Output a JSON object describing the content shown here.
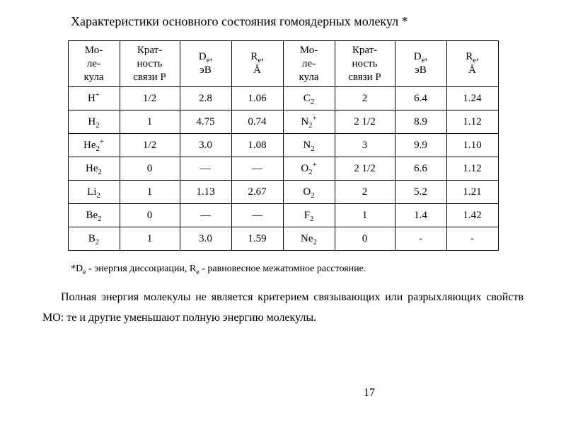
{
  "title": "Характеристики основного состояния гомоядерных молекул *",
  "table": {
    "columns_left": {
      "mol": "Мо-\nле-\nкула",
      "bond": "Крат-\nность\nсвязи Р",
      "de": "D<sub>е</sub>,\nэВ",
      "re": "R<sub>е</sub>,\nÅ"
    },
    "columns_right": {
      "mol": "Мо-\nле-\nкула",
      "bond": "Крат-\nность\nсвязи Р",
      "de": "D<sub>е</sub>,\nэВ",
      "re": "R<sub>е</sub>,\nÅ"
    },
    "rows": [
      {
        "l_mol": "H<sup>+</sup>",
        "l_bond": "1/2",
        "l_de": "2.8",
        "l_re": "1.06",
        "r_mol": "C<sub>2</sub>",
        "r_bond": "2",
        "r_de": "6.4",
        "r_re": "1.24"
      },
      {
        "l_mol": "H<sub>2</sub>",
        "l_bond": "1",
        "l_de": "4.75",
        "l_re": "0.74",
        "r_mol": "N<sub>2</sub><sup>+</sup>",
        "r_bond": "2 1/2",
        "r_de": "8.9",
        "r_re": "1.12"
      },
      {
        "l_mol": "He<sub>2</sub><sup>+</sup>",
        "l_bond": "1/2",
        "l_de": "3.0",
        "l_re": "1.08",
        "r_mol": "N<sub>2</sub>",
        "r_bond": "3",
        "r_de": "9.9",
        "r_re": "1.10"
      },
      {
        "l_mol": "He<sub>2</sub>",
        "l_bond": "0",
        "l_de": "—",
        "l_re": "—",
        "r_mol": "O<sub>2</sub><sup>+</sup>",
        "r_bond": "2 1/2",
        "r_de": "6.6",
        "r_re": "1.12"
      },
      {
        "l_mol": "Li<sub>2</sub>",
        "l_bond": "1",
        "l_de": "1.13",
        "l_re": "2.67",
        "r_mol": "O<sub>2</sub>",
        "r_bond": "2",
        "r_de": "5.2",
        "r_re": "1.21"
      },
      {
        "l_mol": "Be<sub>2</sub>",
        "l_bond": "0",
        "l_de": "—",
        "l_re": "—",
        "r_mol": "F<sub>2</sub>",
        "r_bond": "1",
        "r_de": "1.4",
        "r_re": "1.42"
      },
      {
        "l_mol": "B<sub>2</sub>",
        "l_bond": "1",
        "l_de": "3.0",
        "l_re": "1.59",
        "r_mol": "Ne<sub>2</sub>",
        "r_bond": "0",
        "r_de": "-",
        "r_re": "-"
      }
    ],
    "col_widths": {
      "mol": 56,
      "bond": 68,
      "de": 56,
      "re": 56
    },
    "border_color": "#000000",
    "background_color": "#ffffff",
    "font_size": 15
  },
  "footnote": "*D<sub>е</sub> - энергия диссоциации,  R<sub>е</sub> - равновесное межатомное расстояние.",
  "paragraph": "Полная энергия молекулы не является критерием связывающих или разрыхляющих свойств МО: те и другие уменьшают полную энергию молекулы.",
  "page_number": "17",
  "style": {
    "background_color": "#ffffff",
    "text_color": "#000000",
    "title_fontsize": 18,
    "footnote_fontsize": 14,
    "paragraph_fontsize": 16,
    "font_family": "Times New Roman"
  }
}
